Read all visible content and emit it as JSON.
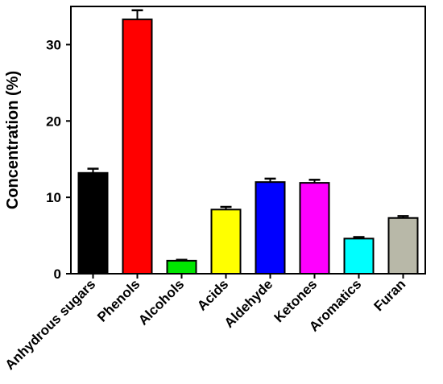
{
  "chart_data": {
    "type": "bar",
    "title": "",
    "xlabel": "",
    "ylabel": "Concentration (%)",
    "ylim": [
      0,
      35
    ],
    "yticks": [
      0,
      10,
      20,
      30
    ],
    "grid": false,
    "legend": "none",
    "categories": [
      "Anhydrous sugars",
      "Phenols",
      "Alcohols",
      "Acids",
      "Aldehyde",
      "Ketones",
      "Aromatics",
      "Furan"
    ],
    "values": [
      13.2,
      33.3,
      1.7,
      8.4,
      12.0,
      11.9,
      4.6,
      7.3
    ],
    "errors": [
      0.55,
      1.2,
      0.12,
      0.35,
      0.45,
      0.4,
      0.2,
      0.25
    ],
    "colors": [
      "#000000",
      "#ff0000",
      "#00e600",
      "#ffff00",
      "#0000ff",
      "#ff00ff",
      "#00ffff",
      "#b8b8a8"
    ]
  }
}
